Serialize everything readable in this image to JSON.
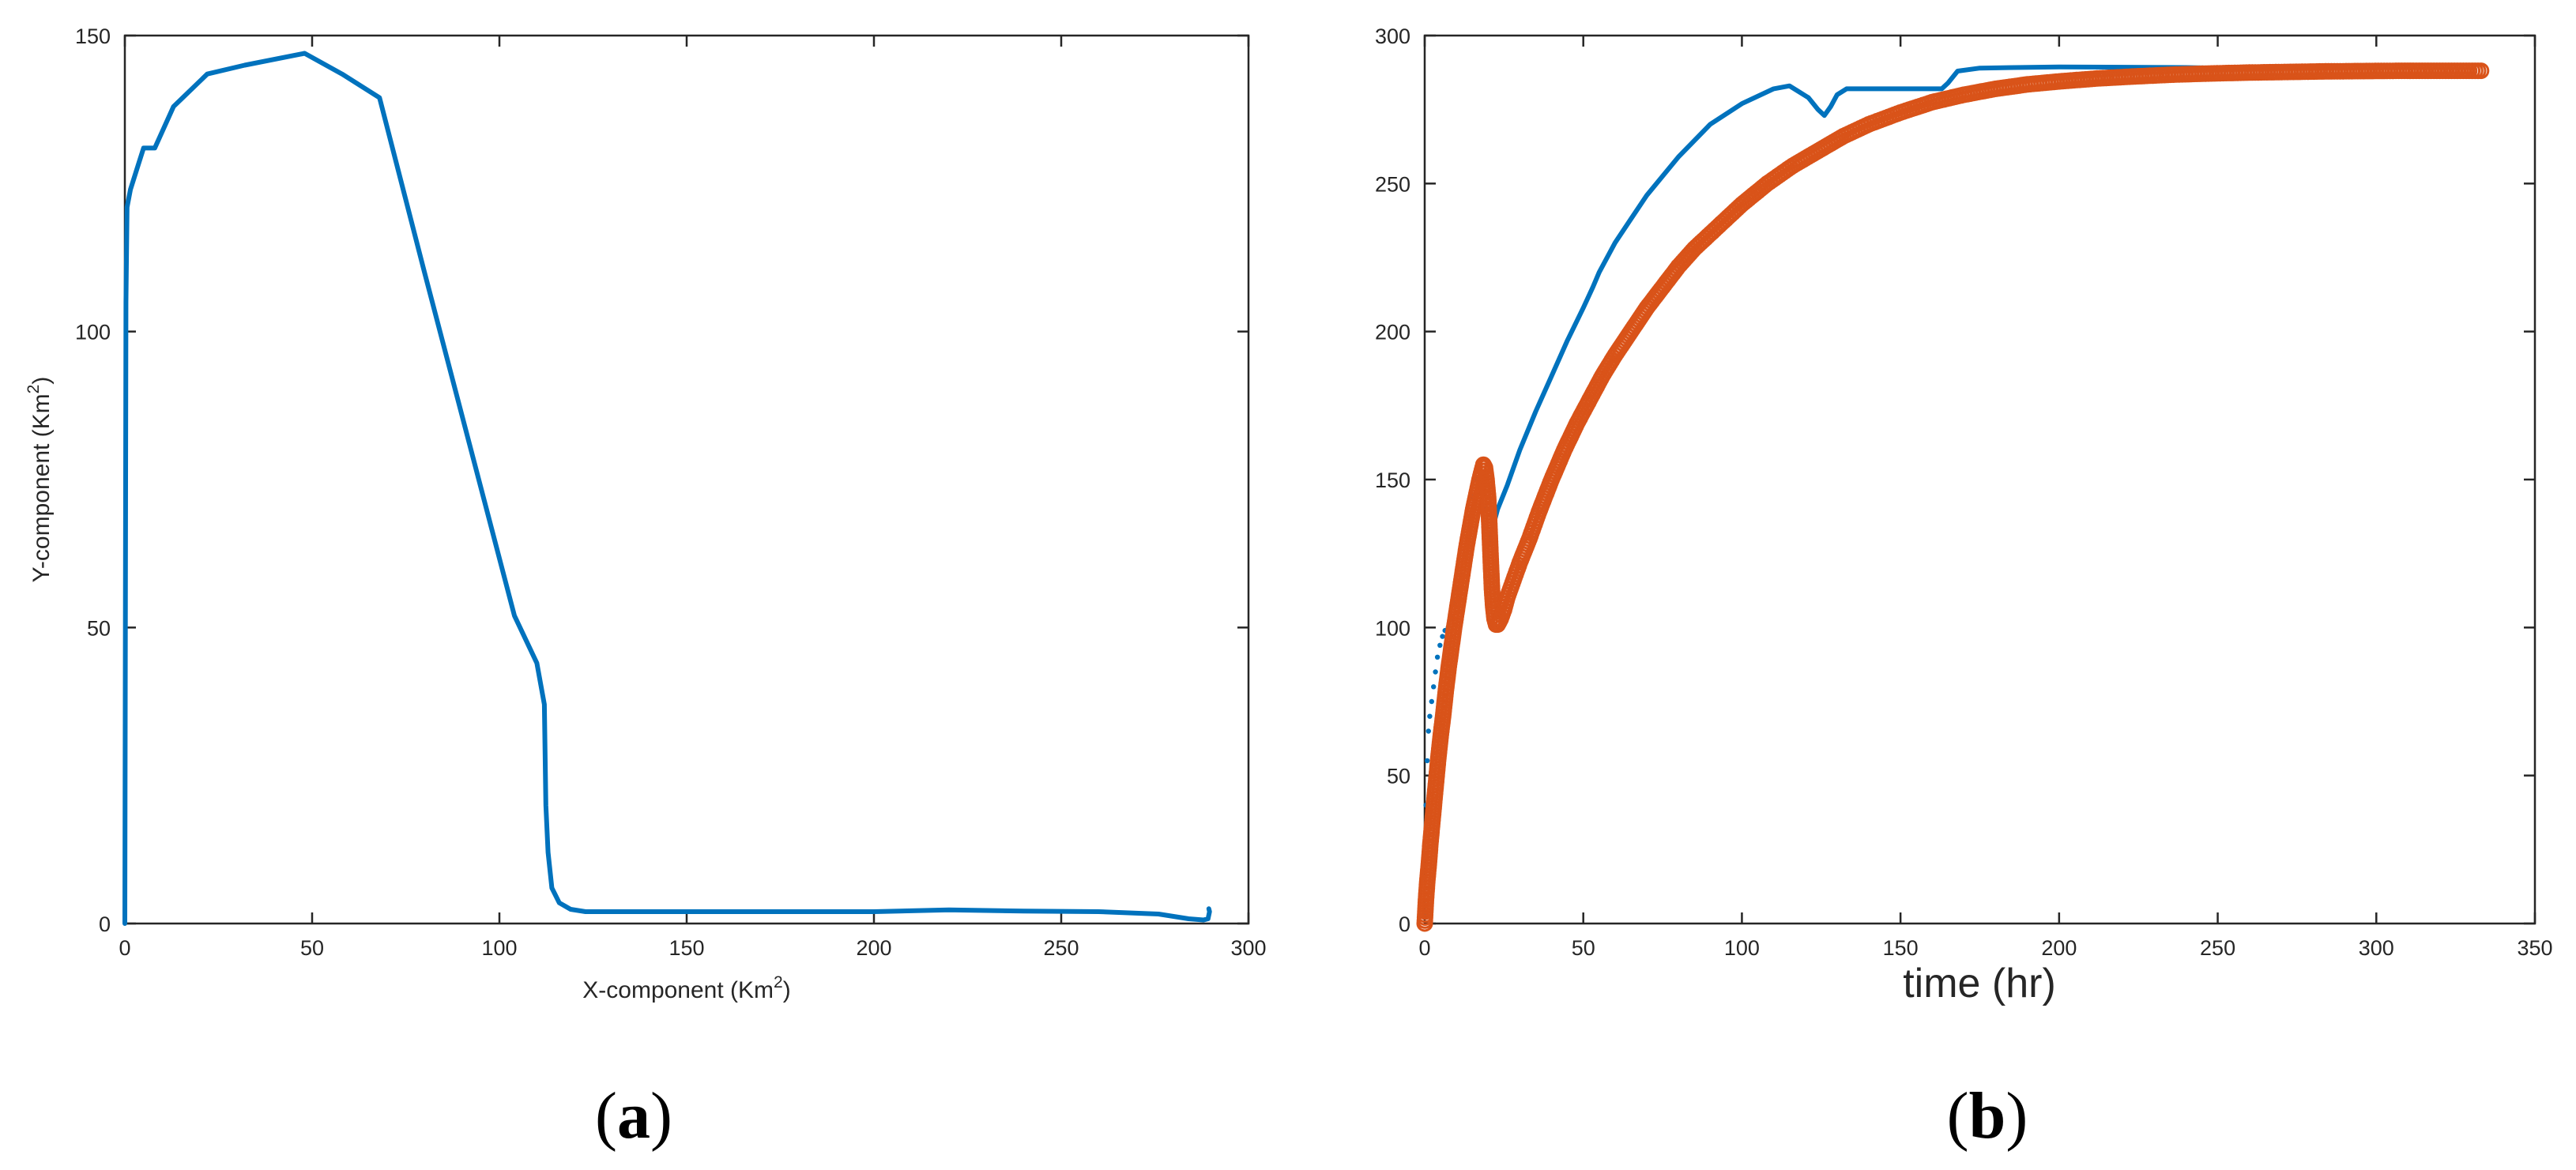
{
  "colors": {
    "blue": "#0072BD",
    "orange": "#D95319",
    "axis": "#262626"
  },
  "chart_data": [
    {
      "type": "line",
      "panel_label": {
        "open": "(",
        "letter": "a",
        "close": ")"
      },
      "xlabel": {
        "text": "X-component (Km",
        "sup": "2",
        "close": ")"
      },
      "ylabel": {
        "text": "Y-component (Km",
        "sup": "2",
        "close": ")"
      },
      "xlim": [
        0,
        300
      ],
      "ylim": [
        0,
        150
      ],
      "xticks": [
        0,
        50,
        100,
        150,
        200,
        250,
        300
      ],
      "yticks": [
        0,
        50,
        100,
        150
      ],
      "grid": false,
      "series": [
        {
          "style": "line",
          "color": "#0072BD",
          "x": [
            0,
            0.3,
            0.6,
            1.5,
            3,
            5,
            8,
            13,
            22,
            32,
            48,
            58,
            68,
            80,
            92,
            104,
            110,
            112,
            112.4,
            113,
            114,
            116,
            119,
            123,
            130,
            150,
            180,
            200,
            220,
            240,
            260,
            276,
            280,
            284,
            288,
            289.2,
            289.6,
            289.4
          ],
          "y": [
            0,
            105,
            121,
            124,
            127,
            131,
            131,
            138,
            143.5,
            145,
            147,
            143.5,
            139.5,
            110,
            81,
            52,
            44,
            37,
            20,
            12,
            6,
            3.5,
            2.4,
            2,
            2,
            2,
            2,
            2,
            2.3,
            2.1,
            2,
            1.6,
            1.2,
            0.8,
            0.6,
            0.8,
            2,
            2.5
          ]
        }
      ]
    },
    {
      "type": "scatter",
      "panel_label": {
        "open": "(",
        "letter": "b",
        "close": ")"
      },
      "xlabel": {
        "text": "time (hr)"
      },
      "ylabel": {
        "text": ""
      },
      "xlim": [
        0,
        350
      ],
      "ylim": [
        0,
        300
      ],
      "xticks": [
        0,
        50,
        100,
        150,
        200,
        250,
        300,
        350
      ],
      "yticks": [
        0,
        50,
        100,
        150,
        200,
        250,
        300
      ],
      "grid": false,
      "series": [
        {
          "style": "dots",
          "color": "#0072BD",
          "x": [
            0,
            0.4,
            0.8,
            1.2,
            1.6,
            2.2,
            2.8,
            3.4,
            4,
            4.8,
            5.6,
            6.4,
            7.4,
            8.4,
            9.4,
            10.4,
            11.4,
            12.4,
            13.4,
            14.4,
            15.4,
            16.4,
            17.4,
            18.4,
            19.2
          ],
          "y": [
            3,
            40,
            55,
            65,
            70,
            75,
            80,
            85,
            90,
            94,
            97,
            99,
            100,
            103,
            108,
            113,
            118,
            124,
            130,
            138,
            144,
            150,
            153,
            145,
            140
          ]
        },
        {
          "style": "line",
          "color": "#0072BD",
          "x": [
            20,
            23,
            26,
            30,
            35,
            40,
            45,
            50,
            53,
            55,
            60,
            65,
            70,
            80,
            90,
            100,
            110,
            115,
            118,
            121,
            124,
            126,
            128,
            130,
            133,
            137,
            150,
            163,
            165,
            168,
            175,
            200,
            240,
            260,
            280,
            289
          ],
          "y": [
            128,
            140,
            148,
            160,
            173,
            185,
            197,
            208,
            215,
            220,
            230,
            238,
            246,
            259,
            270,
            277,
            282,
            283,
            281,
            279,
            275,
            273,
            276,
            280,
            282,
            282,
            282,
            282,
            284,
            288,
            289,
            289.4,
            289.2,
            288.8,
            289.3,
            289.2
          ]
        },
        {
          "style": "circles",
          "color": "#D95319",
          "x": [
            0,
            0.4,
            0.8,
            1.3,
            1.8,
            2.4,
            3,
            3.6,
            4.3,
            5,
            5.8,
            6.6,
            7.5,
            8.4,
            9.3,
            10.3,
            11.3,
            12.3,
            13.3,
            14.3,
            15.3,
            16.3,
            17.3,
            18,
            18.5,
            19,
            19.5,
            20,
            20.3,
            20.6,
            20.9,
            21.2,
            21.6,
            22,
            22.5,
            23,
            24,
            25,
            26,
            28,
            30,
            33,
            36,
            40,
            44,
            48,
            52,
            56,
            60,
            65,
            70,
            75,
            80,
            85,
            90,
            95,
            100,
            108,
            116,
            124,
            132,
            140,
            150,
            160,
            170,
            180,
            190,
            200,
            212,
            224,
            236,
            248,
            260,
            272,
            284,
            296,
            308,
            320,
            333
          ],
          "y": [
            0,
            8,
            14,
            20,
            27,
            34,
            41,
            48,
            56,
            63,
            70,
            78,
            86,
            93,
            100,
            107,
            114,
            121,
            128,
            134,
            140,
            145,
            150,
            153,
            155,
            154,
            150,
            144,
            137,
            129,
            121,
            113,
            107,
            103,
            101,
            101,
            103,
            106,
            110,
            116,
            122,
            130,
            139,
            150,
            160,
            169,
            177,
            185,
            192,
            200,
            208,
            215,
            222,
            228,
            233,
            238,
            243,
            250,
            256,
            261,
            266,
            270,
            274,
            277.5,
            280,
            282,
            283.5,
            284.5,
            285.5,
            286.2,
            286.8,
            287.2,
            287.5,
            287.7,
            287.9,
            288,
            288.1,
            288.1,
            288.1
          ]
        }
      ]
    }
  ]
}
